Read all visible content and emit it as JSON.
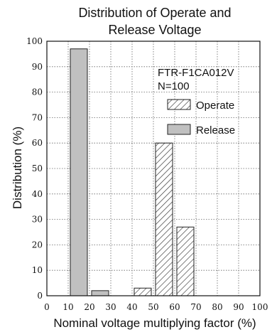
{
  "chart_data": {
    "type": "bar",
    "title_lines": [
      "Distribution of Operate and",
      "Release Voltage"
    ],
    "xlabel": "Nominal voltage multiplying factor (%)",
    "ylabel": "Distribution (%)",
    "xlim": [
      0,
      100
    ],
    "ylim": [
      0,
      100
    ],
    "x_ticks": [
      0,
      10,
      20,
      30,
      40,
      50,
      60,
      70,
      80,
      90,
      100
    ],
    "y_ticks": [
      0,
      10,
      20,
      30,
      40,
      50,
      60,
      70,
      80,
      90,
      100
    ],
    "grid": true,
    "bin_width": 8,
    "annotation_lines": [
      "FTR-F1CA012V",
      "N=100"
    ],
    "series": [
      {
        "name": "Operate",
        "pattern": "hatched",
        "color": "#222222",
        "bins": [
          {
            "x": 45,
            "value": 3
          },
          {
            "x": 55,
            "value": 60
          },
          {
            "x": 65,
            "value": 27
          }
        ]
      },
      {
        "name": "Release",
        "pattern": "solid",
        "color": "#c0c0c0",
        "bins": [
          {
            "x": 15,
            "value": 97
          },
          {
            "x": 25,
            "value": 2
          }
        ]
      }
    ],
    "legend_position": "top-right"
  }
}
